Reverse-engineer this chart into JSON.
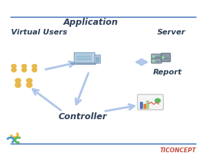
{
  "bg_color": "#ffffff",
  "title_line_color": "#4a7abf",
  "bottom_line_color": "#4a7abf",
  "arrow_color": "#aec6e8",
  "labels": {
    "virtual_users": "Virtual Users",
    "application": "Application",
    "server": "Server",
    "controller": "Controller",
    "report": "Report"
  },
  "label_color": "#2e4057",
  "label_fontsize": 9,
  "watermark_text": "TICONCEPT",
  "watermark_color": "#c0392b",
  "watermark_fontsize": 6,
  "icon_colors": {
    "users_body": "#e8b84b",
    "lock_colors": [
      "#f0b429",
      "#4a9ad4",
      "#5cb85c"
    ]
  }
}
